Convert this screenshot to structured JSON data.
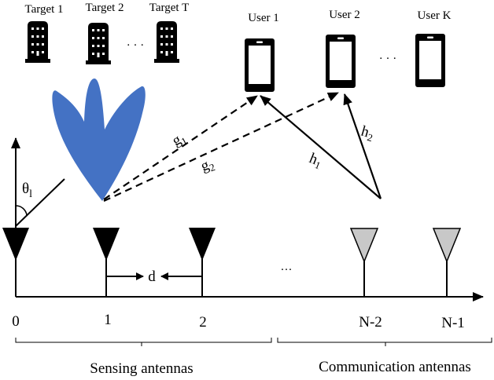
{
  "targets": {
    "labels": [
      "Target 1",
      "Target 2",
      "Target T"
    ],
    "ellipsis": "· · ·",
    "icon": "building-icon"
  },
  "users": {
    "labels": [
      "User 1",
      "User 2",
      "User K"
    ],
    "ellipsis": "· · ·",
    "icon": "smartphone-icon"
  },
  "beam": {
    "color": "#4472C4"
  },
  "channels": {
    "g1": "g",
    "g1_sub": "1",
    "g2": "g",
    "g2_sub": "2",
    "h1": "h",
    "h1_sub": "1",
    "h2": "h",
    "h2_sub": "2"
  },
  "angle": {
    "symbol": "θ",
    "sub": "l"
  },
  "spacing": "d",
  "antennas": {
    "indices": [
      "0",
      "1",
      "2",
      "N-2",
      "N-1"
    ],
    "ellipsis": "···",
    "sensing_color": "#000000",
    "communication_color": "#C8C8C8"
  },
  "groups": {
    "sensing": "Sensing antennas",
    "communication": "Communication antennas"
  }
}
